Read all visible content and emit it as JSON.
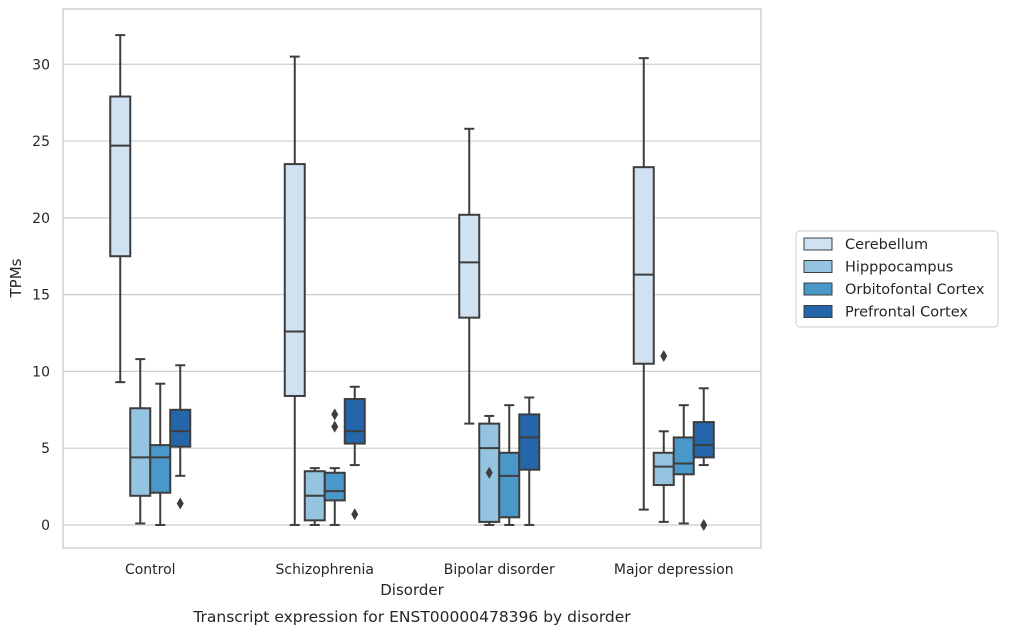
{
  "chart_data": {
    "type": "box",
    "title": "",
    "caption": "Transcript expression for ENST00000478396 by disorder",
    "xlabel": "Disorder",
    "ylabel": "TPMs",
    "ylim": [
      -1.5,
      33.6
    ],
    "yticks": [
      0,
      5,
      10,
      15,
      20,
      25,
      30
    ],
    "grid": "horizontal",
    "legend_position": "right",
    "categories": [
      "Control",
      "Schizophrenia",
      "Bipolar disorder",
      "Major depression"
    ],
    "series": [
      {
        "name": "Cerebellum",
        "color": "#d0e1f2",
        "boxes": [
          {
            "whisker_low": 9.3,
            "q1": 17.5,
            "median": 24.7,
            "q3": 27.9,
            "whisker_high": 31.9,
            "outliers": []
          },
          {
            "whisker_low": 0.0,
            "q1": 8.4,
            "median": 12.6,
            "q3": 23.5,
            "whisker_high": 30.5,
            "outliers": []
          },
          {
            "whisker_low": 6.6,
            "q1": 13.5,
            "median": 17.1,
            "q3": 20.2,
            "whisker_high": 25.8,
            "outliers": []
          },
          {
            "whisker_low": 1.0,
            "q1": 10.5,
            "median": 16.3,
            "q3": 23.3,
            "whisker_high": 30.4,
            "outliers": []
          }
        ]
      },
      {
        "name": "Hipppocampus",
        "color": "#94c4df",
        "boxes": [
          {
            "whisker_low": 0.1,
            "q1": 1.9,
            "median": 4.4,
            "q3": 7.6,
            "whisker_high": 10.8,
            "outliers": []
          },
          {
            "whisker_low": 0.0,
            "q1": 0.3,
            "median": 1.9,
            "q3": 3.5,
            "whisker_high": 3.7,
            "outliers": []
          },
          {
            "whisker_low": 0.0,
            "q1": 0.2,
            "median": 5.0,
            "q3": 6.6,
            "whisker_high": 7.1,
            "outliers": [
              3.4
            ]
          },
          {
            "whisker_low": 0.2,
            "q1": 2.6,
            "median": 3.8,
            "q3": 4.7,
            "whisker_high": 6.1,
            "outliers": [
              11.0
            ]
          }
        ]
      },
      {
        "name": "Orbitofontal Cortex",
        "color": "#4a98c9",
        "boxes": [
          {
            "whisker_low": 0.0,
            "q1": 2.1,
            "median": 4.4,
            "q3": 5.2,
            "whisker_high": 9.2,
            "outliers": []
          },
          {
            "whisker_low": 0.0,
            "q1": 1.6,
            "median": 2.2,
            "q3": 3.4,
            "whisker_high": 3.7,
            "outliers": [
              6.4,
              7.2
            ]
          },
          {
            "whisker_low": 0.0,
            "q1": 0.5,
            "median": 3.2,
            "q3": 4.7,
            "whisker_high": 7.8,
            "outliers": []
          },
          {
            "whisker_low": 0.1,
            "q1": 3.3,
            "median": 4.0,
            "q3": 5.7,
            "whisker_high": 7.8,
            "outliers": []
          }
        ]
      },
      {
        "name": "Prefrontal Cortex",
        "color": "#2466a9",
        "boxes": [
          {
            "whisker_low": 3.2,
            "q1": 5.1,
            "median": 6.1,
            "q3": 7.5,
            "whisker_high": 10.4,
            "outliers": [
              1.4
            ]
          },
          {
            "whisker_low": 3.9,
            "q1": 5.3,
            "median": 6.1,
            "q3": 8.2,
            "whisker_high": 9.0,
            "outliers": [
              0.7
            ]
          },
          {
            "whisker_low": 0.0,
            "q1": 3.6,
            "median": 5.7,
            "q3": 7.2,
            "whisker_high": 8.3,
            "outliers": []
          },
          {
            "whisker_low": 3.9,
            "q1": 4.4,
            "median": 5.2,
            "q3": 6.7,
            "whisker_high": 8.9,
            "outliers": [
              0.0
            ]
          }
        ]
      }
    ]
  }
}
